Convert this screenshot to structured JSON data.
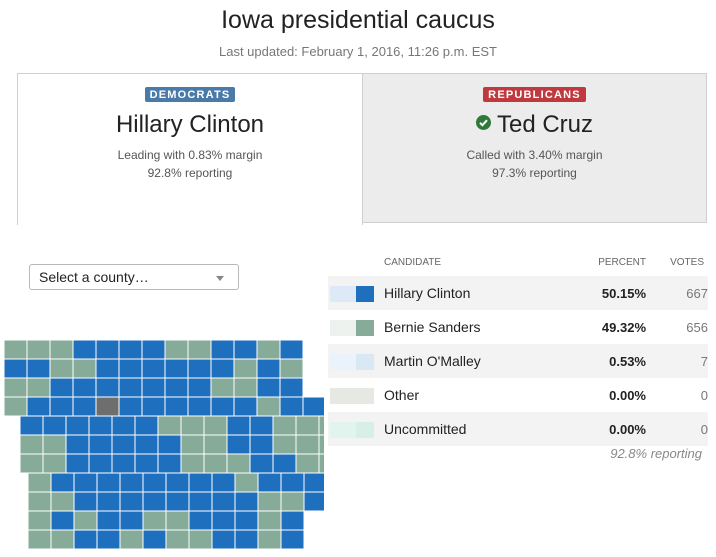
{
  "page": {
    "title": "Iowa presidential caucus",
    "updated": "Last updated: February 1, 2016, 11:26 p.m. EST"
  },
  "cards": {
    "democrats": {
      "badge": "DEMOCRATS",
      "badge_color": "#4a7aa8",
      "leader": "Hillary Clinton",
      "status": "Leading with 0.83% margin",
      "reporting": "92.8% reporting"
    },
    "republicans": {
      "badge": "REPUBLICANS",
      "badge_color": "#c0393e",
      "leader": "Ted Cruz",
      "icon": "check-circle-icon",
      "status": "Called with 3.40% margin",
      "reporting": "97.3% reporting"
    }
  },
  "county_select": {
    "selected": "Select a county…"
  },
  "results": {
    "headers": {
      "candidate": "CANDIDATE",
      "percent": "PERCENT",
      "votes": "VOTES"
    },
    "rows": [
      {
        "candidate": "Hillary Clinton",
        "percent": "50.15%",
        "votes": "667",
        "color": "#1f6fbf",
        "light": "#dde9f6"
      },
      {
        "candidate": "Bernie Sanders",
        "percent": "49.32%",
        "votes": "656",
        "color": "#86ab98",
        "light": "#edf2ef"
      },
      {
        "candidate": "Martin O'Malley",
        "percent": "0.53%",
        "votes": "7",
        "color": "#d9e8f5",
        "light": "#eaf3fb"
      },
      {
        "candidate": "Other",
        "percent": "0.00%",
        "votes": "0",
        "color": "#e6e9e3",
        "light": "#e6e9e3"
      },
      {
        "candidate": "Uncommitted",
        "percent": "0.00%",
        "votes": "0",
        "color": "#d8efe8",
        "light": "#e2f4ee"
      }
    ],
    "reporting": "92.8% reporting"
  },
  "map": {
    "colors": {
      "clinton": "#1f6fbf",
      "sanders": "#86ab98",
      "none": "#6e6e6e",
      "border": "#ffffff"
    },
    "rows": [
      "SSSCCCCSSCCSC",
      "CCSSCCCCCCSCS",
      "SSCCCCCCCSSCC",
      "SCCCNCCCCCCSCC",
      "CCCCCCSSSCCSSS",
      "SSCCCCCSSCCSSS",
      "SSCCCCCSSSCCSS",
      "SCCCCCCCCSCCCS",
      "SSCCCCCCCCSSC",
      "SCSCCSSCCCSC",
      "SSCCSCSSCCSC"
    ]
  }
}
